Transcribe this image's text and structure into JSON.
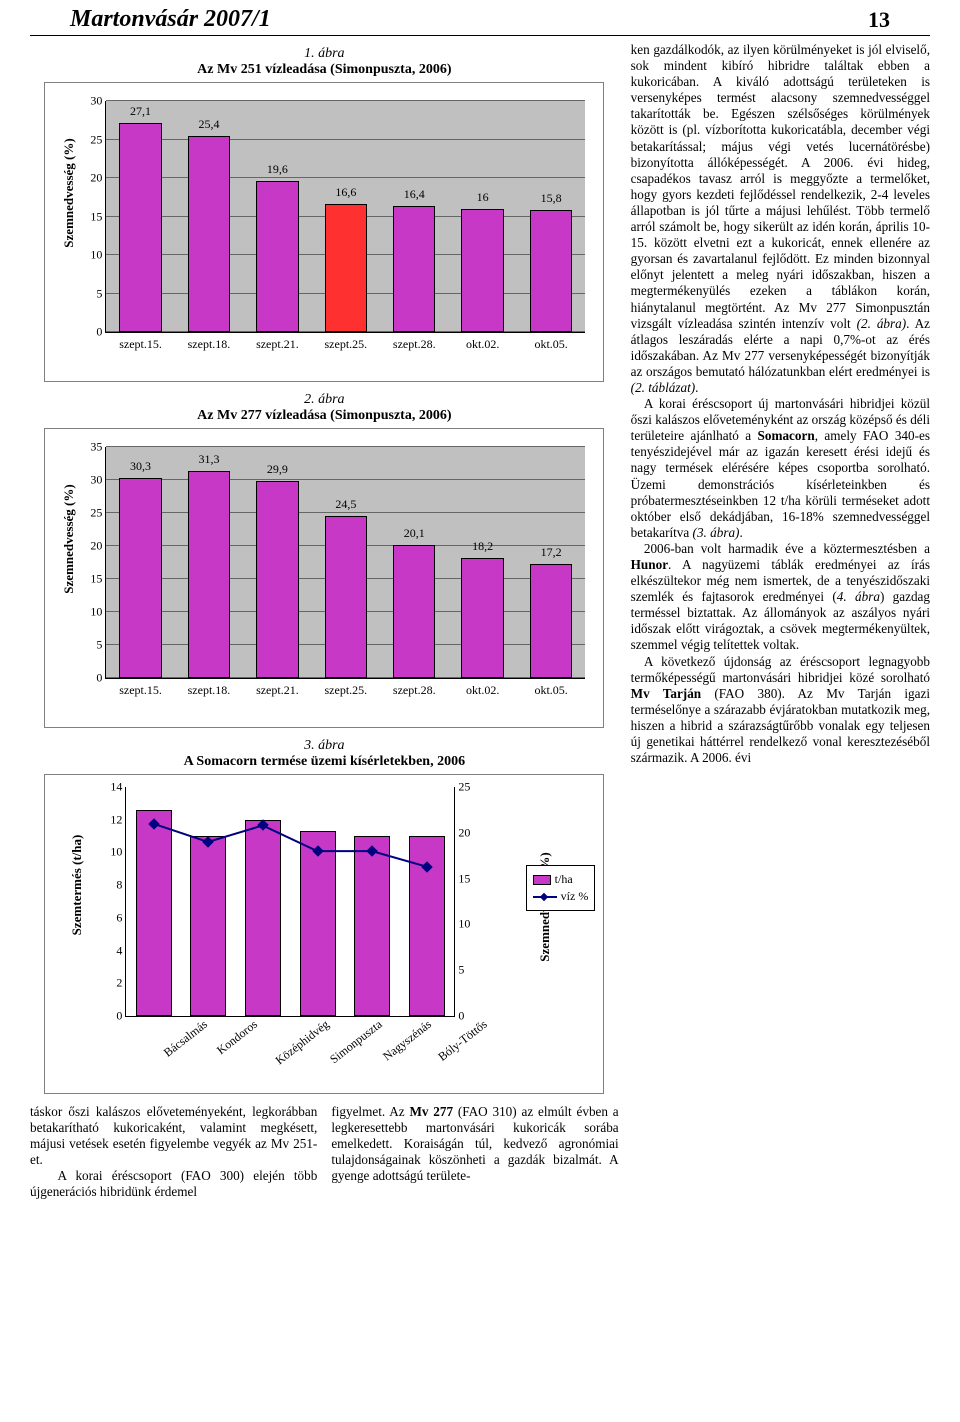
{
  "header": {
    "title": "Martonvásár 2007/1",
    "page_number": "13"
  },
  "figures": {
    "fig1": {
      "label": "1. ábra",
      "title": "Az Mv 251 vízleadása (Simonpuszta, 2006)",
      "ylabel": "Szemnedvesség (%)",
      "ylim": [
        0,
        30
      ],
      "ytick_step": 5,
      "background_color": "#c0c0c0",
      "bar_color": "#c738c7",
      "highlight_color": "#ff3030",
      "highlight_index": 3,
      "categories": [
        "szept.15.",
        "szept.18.",
        "szept.21.",
        "szept.25.",
        "szept.28.",
        "okt.02.",
        "okt.05."
      ],
      "values": [
        27.1,
        25.4,
        19.6,
        16.6,
        16.4,
        16,
        15.8
      ],
      "label_fontsize": 12
    },
    "fig2": {
      "label": "2. ábra",
      "title": "Az Mv 277 vízleadása (Simonpuszta, 2006)",
      "ylabel": "Szemnedvesség (%)",
      "ylim": [
        0,
        35
      ],
      "ytick_step": 5,
      "background_color": "#c0c0c0",
      "bar_color": "#c738c7",
      "categories": [
        "szept.15.",
        "szept.18.",
        "szept.21.",
        "szept.25.",
        "szept.28.",
        "okt.02.",
        "okt.05."
      ],
      "values": [
        30.3,
        31.3,
        29.9,
        24.5,
        20.1,
        18.2,
        17.2
      ],
      "label_fontsize": 12
    },
    "fig3": {
      "label": "3. ábra",
      "title": "A Somacorn termése üzemi kísérletekben, 2006",
      "ylabel_left": "Szemtermés (t/ha)",
      "ylabel_right": "Szemnedvesség (%)",
      "y1_lim": [
        0,
        14
      ],
      "y1_tick_step": 2,
      "y2_lim": [
        0,
        25
      ],
      "y2_tick_step": 5,
      "bar_color": "#c738c7",
      "line_color": "#000080",
      "categories": [
        "Bácsalmás",
        "Kondoros",
        "Középhidvég",
        "Simonpuszta",
        "Nagyszénás",
        "Bóly-Töttős"
      ],
      "bar_values": [
        12.6,
        11.0,
        12.0,
        11.3,
        11.0,
        11.0
      ],
      "line_values": [
        21.0,
        19.0,
        20.8,
        18.0,
        18.0,
        16.3
      ],
      "legend": {
        "series1": "t/ha",
        "series2": "víz %"
      },
      "label_fontsize": 12
    }
  },
  "bottom_text": {
    "left": "táskor őszi kalászos előveteményeként, legkorábban betakarítható kukoricaként, valamint megkésett, májusi vetések esetén figyelembe vegyék az Mv 251-et.\n   A korai éréscsoport (FAO 300) elején több újgenerációs hibridünk érdemel",
    "right_pre": "figyelmet. Az ",
    "right_b1": "Mv 277",
    "right_post": " (FAO 310) az elmúlt évben a legkeresettebb martonvásári kukoricák sorába emelkedett. Koraiságán túl, kedvező agronómiai tulajdonságainak köszönheti a gazdák bizalmát. A gyenge adottságú területe-"
  },
  "right_col": {
    "p1": "ken gazdálkodók, az ilyen körülményeket is jól elviselő, sok mindent kibíró hibridre találtak ebben a kukoricában. A kiváló adottságú területeken is versenyképes termést alacsony szemnedvességgel takarították be. Egészen szélsőséges körülmények között is (pl. vízborította kukoricatábla, december végi betakarítással; május végi vetés lucernátörésbe) bizonyította állóképességét. A 2006. évi hideg, csapadékos tavasz arról is meggyőzte a termelőket, hogy gyors kezdeti fejlődéssel rendelkezik, 2-4 leveles állapotban is jól tűrte a májusi lehűlést. Több termelő arról számolt be, hogy sikerült az idén korán, április 10-15. között elvetni ezt a kukoricát, ennek ellenére az gyorsan és zavartalanul fejlődött. Ez minden bizonnyal előnyt jelentett a meleg nyári időszakban, hiszen a megtermékenyülés ezeken a táblákon korán, hiánytalanul megtörtént. Az Mv 277 Simonpusztán vizsgált vízleadása szintén intenzív volt ",
    "p1_i1": "(2. ábra)",
    "p1_b": ". Az átlagos leszáradás elérte a napi 0,7%-ot az érés időszakában. Az Mv 277 versenyképességét bizonyítják az országos bemutató hálózatunkban elért eredményei is ",
    "p1_i2": "(2. táblázat)",
    "p1_c": ".",
    "p2a": "A korai éréscsoport új martonvásári hibridjei közül őszi kalászos előveteményként az ország középső és déli területeire ajánlható a ",
    "p2_b1": "Somacorn",
    "p2b": ", amely FAO 340-es tenyészidejével már az igazán keresett érési idejű és nagy termések elérésére képes csoportba sorolható. Üzemi demonstrációs kísérleteinkben és próbatermesztéseinkben 12 t/ha körüli terméseket adott október első dekádjában, 16-18% szemnedvességgel betakarítva ",
    "p2_i1": "(3. ábra)",
    "p2c": ".",
    "p3a": "2006-ban volt harmadik éve a köztermesztésben a ",
    "p3_b1": "Hunor",
    "p3b": ". A nagyüzemi táblák eredményei az írás elkészültekor még nem ismertek, de a tenyészidőszaki szemlék és fajtasorok eredményei (",
    "p3_i1": "4. ábra",
    "p3c": ") gazdag terméssel biztattak. Az állományok az aszályos nyári időszak előtt virágoztak, a csövek megtermékenyültek, szemmel végig telítettek voltak.",
    "p4a": "A következő újdonság az éréscsoport legnagyobb termőképességű martonvásári hibridjei közé sorolható ",
    "p4_b1": "Mv Tarján",
    "p4b": " (FAO 380). Az Mv Tarján igazi terméselőnye a szárazabb évjáratokban mutatkozik meg, hiszen a hibrid a szárazságtűrőbb vonalak egy teljesen új genetikai háttérrel rendelkező vonal keresztezéséből származik. A 2006. évi"
  }
}
